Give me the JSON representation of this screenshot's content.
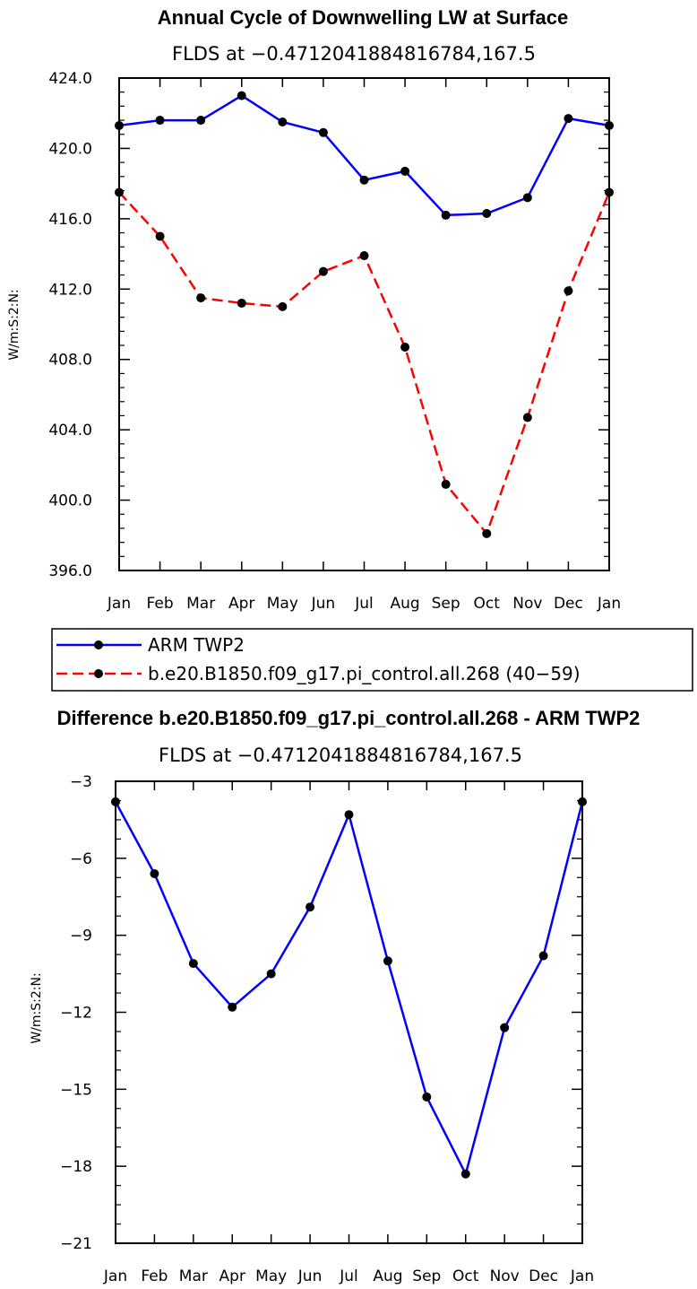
{
  "chart_data": [
    {
      "type": "line",
      "title": "Annual Cycle of Downwelling LW at Surface",
      "subtitle": "FLDS at −0.4712041884816784,167.5",
      "ylabel": "W/m:S:2:N:",
      "xlabel": "",
      "categories": [
        "Jan",
        "Feb",
        "Mar",
        "Apr",
        "May",
        "Jun",
        "Jul",
        "Aug",
        "Sep",
        "Oct",
        "Nov",
        "Dec",
        "Jan"
      ],
      "ylim": [
        396.0,
        424.0
      ],
      "yticks": [
        "396.0",
        "400.0",
        "404.0",
        "408.0",
        "412.0",
        "416.0",
        "420.0",
        "424.0"
      ],
      "grid": false,
      "legend_placement": "bottom",
      "series": [
        {
          "name": "ARM TWP2",
          "color": "#0000ff",
          "dash": "solid",
          "values": [
            421.3,
            421.6,
            421.6,
            423.0,
            421.5,
            420.9,
            418.2,
            418.7,
            416.2,
            416.3,
            417.2,
            421.7,
            421.3
          ]
        },
        {
          "name": "b.e20.B1850.f09_g17.pi_control.all.268 (40−59)",
          "color": "#ff0000",
          "dash": "dashed",
          "values": [
            417.5,
            415.0,
            411.5,
            411.2,
            411.0,
            413.0,
            413.9,
            408.7,
            400.9,
            398.1,
            404.7,
            411.9,
            417.5
          ]
        }
      ]
    },
    {
      "type": "line",
      "title": "Difference b.e20.B1850.f09_g17.pi_control.all.268 - ARM TWP2",
      "subtitle": "FLDS at −0.4712041884816784,167.5",
      "ylabel": "W/m:S:2:N:",
      "xlabel": "",
      "categories": [
        "Jan",
        "Feb",
        "Mar",
        "Apr",
        "May",
        "Jun",
        "Jul",
        "Aug",
        "Sep",
        "Oct",
        "Nov",
        "Dec",
        "Jan"
      ],
      "ylim": [
        -21,
        -3
      ],
      "yticks": [
        "−21",
        "−18",
        "−15",
        "−12",
        "−9",
        "−6",
        "−3"
      ],
      "grid": false,
      "series": [
        {
          "color": "#0000ff",
          "dash": "solid",
          "values": [
            -3.8,
            -6.6,
            -10.1,
            -11.8,
            -10.5,
            -7.9,
            -4.3,
            -10.0,
            -15.3,
            -18.3,
            -12.6,
            -9.8,
            -3.8
          ]
        }
      ]
    }
  ]
}
